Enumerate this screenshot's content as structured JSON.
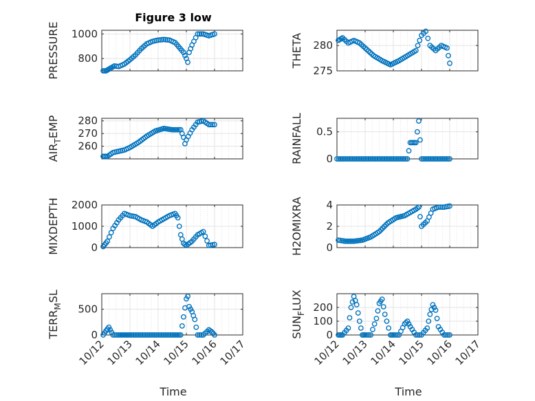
{
  "figure": {
    "title": "Figure 3 low",
    "xlabel_left": "Time",
    "xlabel_right": "Time"
  },
  "chart_data": [
    {
      "type": "scatter",
      "ylabel": "PRESSURE",
      "xlim": [
        0,
        5
      ],
      "ylim": [
        700,
        1030
      ],
      "yticks": [
        800,
        1000
      ],
      "xticks": [
        0,
        1,
        2,
        3,
        4,
        5
      ],
      "x": [
        0.05,
        0.15,
        0.3,
        0.45,
        0.6,
        0.8,
        1.0,
        1.2,
        1.4,
        1.6,
        1.8,
        2.0,
        2.2,
        2.4,
        2.6,
        2.9,
        3.0,
        3.05,
        3.1,
        3.2,
        3.4,
        3.6,
        3.8,
        4.0
      ],
      "y": [
        700,
        700,
        720,
        740,
        735,
        755,
        790,
        830,
        880,
        920,
        940,
        950,
        955,
        950,
        930,
        850,
        800,
        770,
        850,
        910,
        1000,
        1000,
        985,
        1000
      ]
    },
    {
      "type": "scatter",
      "ylabel": "THETA",
      "xlim": [
        0,
        5
      ],
      "ylim": [
        275,
        283
      ],
      "yticks": [
        275,
        280
      ],
      "xticks": [
        0,
        1,
        2,
        3,
        4,
        5
      ],
      "x": [
        0.05,
        0.2,
        0.4,
        0.6,
        0.8,
        1.0,
        1.3,
        1.6,
        1.9,
        2.2,
        2.5,
        2.8,
        3.0,
        3.15,
        3.3,
        3.5,
        3.7,
        3.9,
        4.0
      ],
      "y": [
        281,
        281.5,
        280.5,
        281,
        280.5,
        279.5,
        278,
        277,
        276.2,
        277,
        278,
        279,
        282,
        282.8,
        280,
        279,
        280,
        279.5,
        276.5
      ]
    },
    {
      "type": "scatter",
      "ylabel": "AIR_TEMP",
      "xlim": [
        0,
        5
      ],
      "ylim": [
        250,
        282
      ],
      "yticks": [
        260,
        270,
        280
      ],
      "xticks": [
        0,
        1,
        2,
        3,
        4,
        5
      ],
      "x": [
        0.05,
        0.2,
        0.4,
        0.6,
        0.8,
        1.0,
        1.3,
        1.6,
        1.9,
        2.2,
        2.5,
        2.8,
        2.9,
        2.95,
        3.0,
        3.2,
        3.4,
        3.6,
        3.8,
        4.0
      ],
      "y": [
        252,
        252,
        255,
        256,
        257,
        259,
        263,
        268,
        272,
        274,
        273,
        273,
        267,
        262,
        265,
        273,
        279,
        280,
        277,
        277
      ]
    },
    {
      "type": "scatter",
      "ylabel": "RAINFALL",
      "xlim": [
        0,
        5
      ],
      "ylim": [
        0,
        0.75
      ],
      "yticks": [
        0,
        0.5
      ],
      "xticks": [
        0,
        1,
        2,
        3,
        4,
        5
      ],
      "x": [
        0.0,
        0.5,
        1.0,
        1.5,
        2.0,
        2.5,
        2.6,
        2.7,
        2.8,
        2.9,
        3.0,
        3.5,
        4.0
      ],
      "y": [
        0,
        0,
        0,
        0,
        0,
        0,
        0.3,
        0.3,
        0.3,
        0.7,
        0,
        0,
        0
      ]
    },
    {
      "type": "scatter",
      "ylabel": "MIXDEPTH",
      "xlim": [
        0,
        5
      ],
      "ylim": [
        0,
        2000
      ],
      "yticks": [
        0,
        1000,
        2000
      ],
      "xticks": [
        0,
        1,
        2,
        3,
        4,
        5
      ],
      "x": [
        0.05,
        0.2,
        0.4,
        0.6,
        0.8,
        1.0,
        1.2,
        1.4,
        1.6,
        1.8,
        2.0,
        2.2,
        2.4,
        2.6,
        2.7,
        2.8,
        2.9,
        3.0,
        3.2,
        3.4,
        3.6,
        3.8,
        4.0
      ],
      "y": [
        50,
        300,
        900,
        1300,
        1600,
        1500,
        1450,
        1300,
        1200,
        1000,
        1200,
        1350,
        1500,
        1600,
        1400,
        600,
        200,
        100,
        300,
        600,
        750,
        100,
        150
      ]
    },
    {
      "type": "scatter",
      "ylabel": "H2OMIXRA",
      "xlim": [
        0,
        5
      ],
      "ylim": [
        0,
        4
      ],
      "yticks": [
        0,
        2,
        4
      ],
      "xticks": [
        0,
        1,
        2,
        3,
        4,
        5
      ],
      "x": [
        0.05,
        0.3,
        0.6,
        0.9,
        1.2,
        1.5,
        1.8,
        2.1,
        2.4,
        2.6,
        2.8,
        2.9,
        3.0,
        3.2,
        3.4,
        3.6,
        3.8,
        4.0
      ],
      "y": [
        0.7,
        0.6,
        0.6,
        0.7,
        1.0,
        1.5,
        2.3,
        2.8,
        3.0,
        3.3,
        3.6,
        3.8,
        2.0,
        2.5,
        3.6,
        3.8,
        3.8,
        3.9
      ]
    },
    {
      "type": "scatter",
      "ylabel": "TERR_MSL",
      "xlim": [
        0,
        5
      ],
      "ylim": [
        0,
        800
      ],
      "yticks": [
        0,
        500
      ],
      "xticks": [
        0,
        1,
        2,
        3,
        4,
        5
      ],
      "x": [
        0.05,
        0.15,
        0.25,
        0.4,
        0.6,
        1.0,
        1.5,
        2.0,
        2.5,
        2.8,
        2.9,
        3.0,
        3.05,
        3.1,
        3.2,
        3.3,
        3.4,
        3.6,
        3.8,
        3.9,
        4.0
      ],
      "y": [
        0,
        80,
        150,
        0,
        0,
        0,
        0,
        0,
        0,
        0,
        350,
        700,
        750,
        550,
        450,
        300,
        0,
        0,
        100,
        60,
        0
      ],
      "xticklabels": [
        "10/12",
        "10/13",
        "10/14",
        "10/15",
        "10/16",
        "10/17"
      ]
    },
    {
      "type": "scatter",
      "ylabel": "SUN_FLUX",
      "xlim": [
        0,
        5
      ],
      "ylim": [
        0,
        300
      ],
      "yticks": [
        0,
        100,
        200
      ],
      "xticks": [
        0,
        1,
        2,
        3,
        4,
        5
      ],
      "x": [
        0.05,
        0.2,
        0.4,
        0.5,
        0.6,
        0.7,
        0.8,
        0.9,
        1.0,
        1.2,
        1.4,
        1.5,
        1.6,
        1.7,
        1.9,
        2.0,
        2.2,
        2.4,
        2.5,
        2.6,
        2.8,
        3.0,
        3.2,
        3.3,
        3.4,
        3.5,
        3.6,
        3.8,
        4.0
      ],
      "y": [
        0,
        0,
        50,
        200,
        280,
        220,
        100,
        0,
        0,
        0,
        120,
        230,
        260,
        150,
        0,
        0,
        0,
        80,
        100,
        60,
        0,
        0,
        50,
        150,
        220,
        180,
        60,
        0,
        0
      ],
      "xticklabels": [
        "10/12",
        "10/13",
        "10/14",
        "10/15",
        "10/16",
        "10/17"
      ]
    }
  ]
}
